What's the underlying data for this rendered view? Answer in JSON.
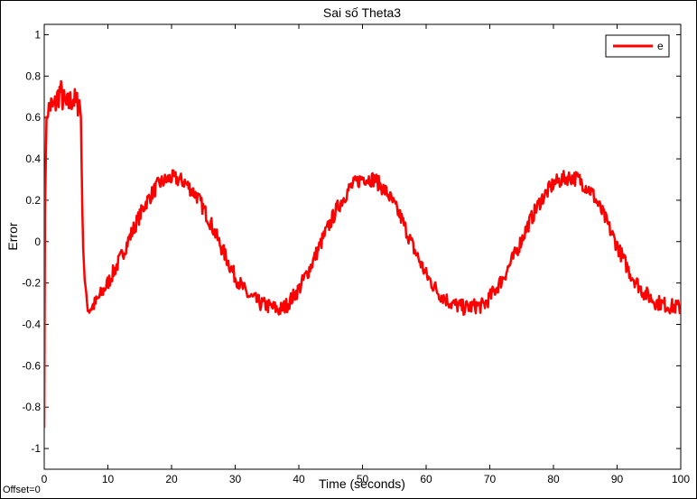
{
  "chart_data": {
    "type": "line",
    "title": "Sai số Theta3",
    "xlabel": "Time (seconds)",
    "ylabel": "Error",
    "xlim": [
      0,
      100
    ],
    "ylim": [
      -1.1,
      1.05
    ],
    "xticks": [
      0,
      10,
      20,
      30,
      40,
      50,
      60,
      70,
      80,
      90,
      100
    ],
    "yticks": [
      -1,
      -0.8,
      -0.6,
      -0.4,
      -0.2,
      0,
      0.2,
      0.4,
      0.6,
      0.8,
      1
    ],
    "grid": false,
    "legend_position": "top-right",
    "offset_text": "Offset=0",
    "series": [
      {
        "name": "e",
        "color": "#ff0000",
        "x": [
          0,
          0.1,
          0.3,
          0.5,
          1,
          1.5,
          2,
          2.5,
          3,
          3.5,
          4,
          4.5,
          5,
          5.5,
          5.8,
          6,
          6.3,
          6.6,
          7,
          8,
          10,
          12,
          14,
          16,
          18,
          20,
          22,
          24,
          26,
          28,
          30,
          32,
          34,
          36,
          37,
          38,
          40,
          42,
          44,
          46,
          48,
          50,
          52,
          54,
          56,
          58,
          60,
          62,
          64,
          66,
          68,
          69,
          70,
          72,
          74,
          76,
          78,
          80,
          82,
          83,
          84,
          86,
          88,
          90,
          92,
          94,
          96,
          98,
          100
        ],
        "y": [
          -0.9,
          0.1,
          0.55,
          0.62,
          0.66,
          0.64,
          0.69,
          0.73,
          0.68,
          0.65,
          0.67,
          0.7,
          0.66,
          0.68,
          0.6,
          0.1,
          -0.15,
          -0.28,
          -0.33,
          -0.3,
          -0.2,
          -0.08,
          0.06,
          0.19,
          0.28,
          0.31,
          0.29,
          0.22,
          0.1,
          -0.04,
          -0.17,
          -0.26,
          -0.3,
          -0.32,
          -0.33,
          -0.31,
          -0.23,
          -0.11,
          0.03,
          0.16,
          0.26,
          0.31,
          0.3,
          0.23,
          0.12,
          -0.03,
          -0.16,
          -0.25,
          -0.3,
          -0.32,
          -0.31,
          -0.31,
          -0.27,
          -0.18,
          -0.06,
          0.08,
          0.2,
          0.28,
          0.31,
          0.31,
          0.3,
          0.24,
          0.12,
          -0.02,
          -0.15,
          -0.24,
          -0.29,
          -0.31,
          -0.32
        ]
      }
    ]
  }
}
